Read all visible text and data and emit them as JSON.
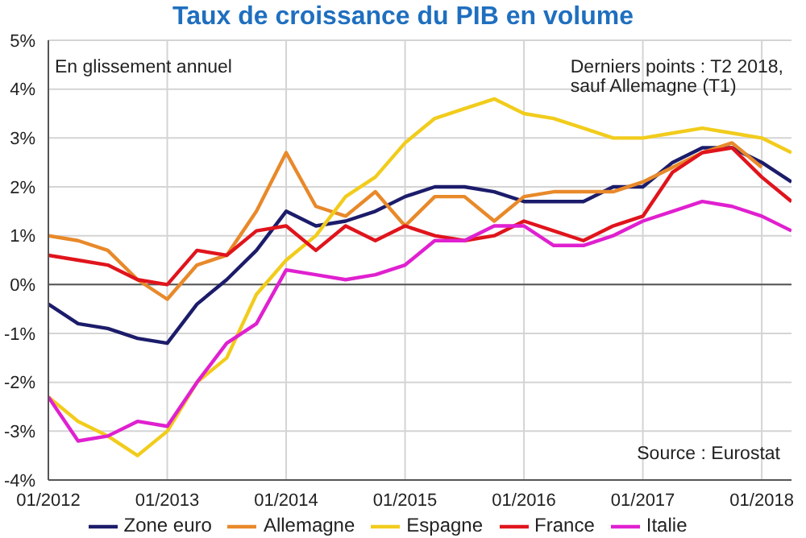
{
  "chart_data": {
    "type": "line",
    "title": "Taux de croissance du PIB en volume",
    "annotations": [
      "En glissement annuel",
      "Derniers points : T2 2018,\nsauf Allemagne (T1)",
      "Source : Eurostat"
    ],
    "x": [
      "2012-01",
      "2012-04",
      "2012-07",
      "2012-10",
      "2013-01",
      "2013-04",
      "2013-07",
      "2013-10",
      "2014-01",
      "2014-04",
      "2014-07",
      "2014-10",
      "2015-01",
      "2015-04",
      "2015-07",
      "2015-10",
      "2016-01",
      "2016-04",
      "2016-07",
      "2016-10",
      "2017-01",
      "2017-04",
      "2017-07",
      "2017-10",
      "2018-01",
      "2018-04"
    ],
    "series": [
      {
        "name": "Zone euro",
        "color": "#1c1c6b",
        "values": [
          -0.4,
          -0.8,
          -0.9,
          -1.1,
          -1.2,
          -0.4,
          0.1,
          0.7,
          1.5,
          1.2,
          1.3,
          1.5,
          1.8,
          2.0,
          2.0,
          1.9,
          1.7,
          1.7,
          1.7,
          2.0,
          2.0,
          2.5,
          2.8,
          2.8,
          2.5,
          2.1
        ]
      },
      {
        "name": "Allemagne",
        "color": "#e8892a",
        "values": [
          1.0,
          0.9,
          0.7,
          0.1,
          -0.3,
          0.4,
          0.6,
          1.5,
          2.7,
          1.6,
          1.4,
          1.9,
          1.2,
          1.8,
          1.8,
          1.3,
          1.8,
          1.9,
          1.9,
          1.9,
          2.1,
          2.4,
          2.7,
          2.9,
          2.4,
          null
        ]
      },
      {
        "name": "Espagne",
        "color": "#f2cc1c",
        "values": [
          -2.3,
          -2.8,
          -3.1,
          -3.5,
          -3.0,
          -2.0,
          -1.5,
          -0.2,
          0.5,
          1.0,
          1.8,
          2.2,
          2.9,
          3.4,
          3.6,
          3.8,
          3.5,
          3.4,
          3.2,
          3.0,
          3.0,
          3.1,
          3.2,
          3.1,
          3.0,
          2.7
        ]
      },
      {
        "name": "France",
        "color": "#e0141c",
        "values": [
          0.6,
          0.5,
          0.4,
          0.1,
          0.0,
          0.7,
          0.6,
          1.1,
          1.2,
          0.7,
          1.2,
          0.9,
          1.2,
          1.0,
          0.9,
          1.0,
          1.3,
          1.1,
          0.9,
          1.2,
          1.4,
          2.3,
          2.7,
          2.8,
          2.2,
          1.7
        ]
      },
      {
        "name": "Italie",
        "color": "#e020d0",
        "values": [
          -2.3,
          -3.2,
          -3.1,
          -2.8,
          -2.9,
          -2.0,
          -1.2,
          -0.8,
          0.3,
          0.2,
          0.1,
          0.2,
          0.4,
          0.9,
          0.9,
          1.2,
          1.2,
          0.8,
          0.8,
          1.0,
          1.3,
          1.5,
          1.7,
          1.6,
          1.4,
          1.1
        ]
      }
    ],
    "xlim": [
      "2012-01",
      "2018-04"
    ],
    "xticks": [
      {
        "value": "2012-01",
        "label": "01/2012"
      },
      {
        "value": "2013-01",
        "label": "01/2013"
      },
      {
        "value": "2014-01",
        "label": "01/2014"
      },
      {
        "value": "2015-01",
        "label": "01/2015"
      },
      {
        "value": "2016-01",
        "label": "01/2016"
      },
      {
        "value": "2017-01",
        "label": "01/2017"
      },
      {
        "value": "2018-01",
        "label": "01/2018"
      }
    ],
    "ylim": [
      -4,
      5
    ],
    "yticks": [
      {
        "value": -4,
        "label": "-4%"
      },
      {
        "value": -3,
        "label": "-3%"
      },
      {
        "value": -2,
        "label": "-2%"
      },
      {
        "value": -1,
        "label": "-1%"
      },
      {
        "value": 0,
        "label": "0%"
      },
      {
        "value": 1,
        "label": "1%"
      },
      {
        "value": 2,
        "label": "2%"
      },
      {
        "value": 3,
        "label": "3%"
      },
      {
        "value": 4,
        "label": "4%"
      },
      {
        "value": 5,
        "label": "5%"
      }
    ],
    "ref_lines": [
      {
        "axis": "y",
        "value": 0,
        "color": "#555555"
      }
    ],
    "grid": true,
    "legend": "bottom",
    "marker": "none",
    "line_style": "solid"
  }
}
